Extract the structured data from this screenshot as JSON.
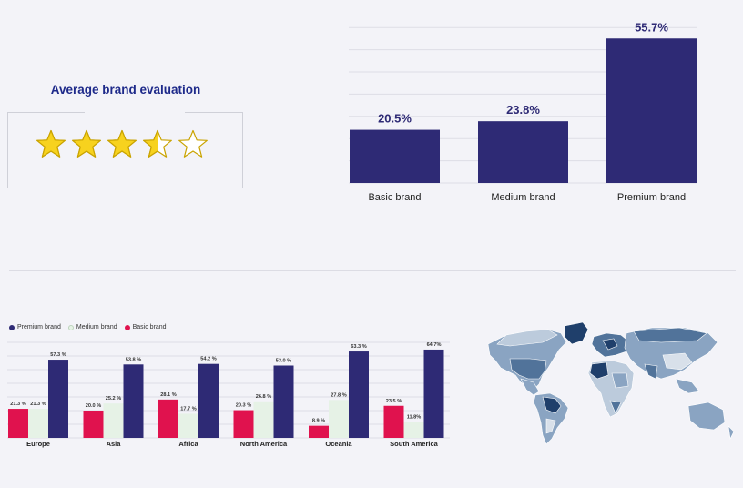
{
  "rating": {
    "title": "Average brand evaluation",
    "value": 3.5,
    "max": 5,
    "star_color": "#f7d21e",
    "star_outline": "#c9a300"
  },
  "chart_data": [
    {
      "type": "bar",
      "categories": [
        "Basic brand",
        "Medium brand",
        "Premium brand"
      ],
      "values": [
        20.5,
        23.8,
        55.7
      ],
      "data_labels": [
        "20.5%",
        "23.8%",
        "55.7%"
      ],
      "ylim": [
        0,
        60
      ],
      "grid": true,
      "color": "#2e2a75"
    },
    {
      "type": "bar",
      "categories": [
        "Europe",
        "Asia",
        "Africa",
        "North America",
        "Oceania",
        "South America"
      ],
      "series": [
        {
          "name": "Basic brand",
          "color": "#e0124e",
          "values": [
            21.3,
            20.0,
            28.1,
            20.3,
            8.9,
            23.5
          ],
          "labels": [
            "21.3 %",
            "20.0 %",
            "28.1 %",
            "20.3 %",
            "8.9 %",
            "23.5 %"
          ]
        },
        {
          "name": "Medium brand",
          "color": "#e6f2e6",
          "values": [
            21.3,
            25.2,
            17.7,
            26.8,
            27.8,
            11.8
          ],
          "labels": [
            "21.3 %",
            "25.2 %",
            "17.7 %",
            "26.8 %",
            "27.8 %",
            "11.8%"
          ]
        },
        {
          "name": "Premium brand",
          "color": "#2e2a75",
          "values": [
            57.3,
            53.8,
            54.2,
            53.0,
            63.3,
            64.7
          ],
          "labels": [
            "57.3 %",
            "53.8 %",
            "54.2 %",
            "53.0 %",
            "63.3 %",
            "64.7%"
          ]
        }
      ],
      "legend": [
        {
          "name": "Premium brand",
          "color": "#2e2a75"
        },
        {
          "name": "Medium brand",
          "color": "#e6f2e6"
        },
        {
          "name": "Basic brand",
          "color": "#e0124e"
        }
      ],
      "legend_position": "top-left",
      "ylim": [
        0,
        70
      ],
      "grid": true
    }
  ],
  "map": {
    "type": "choropleth world map",
    "colors": [
      "#1f3f6b",
      "#51739a",
      "#8aa4c2",
      "#bccbdc",
      "#d8e0ea"
    ]
  }
}
